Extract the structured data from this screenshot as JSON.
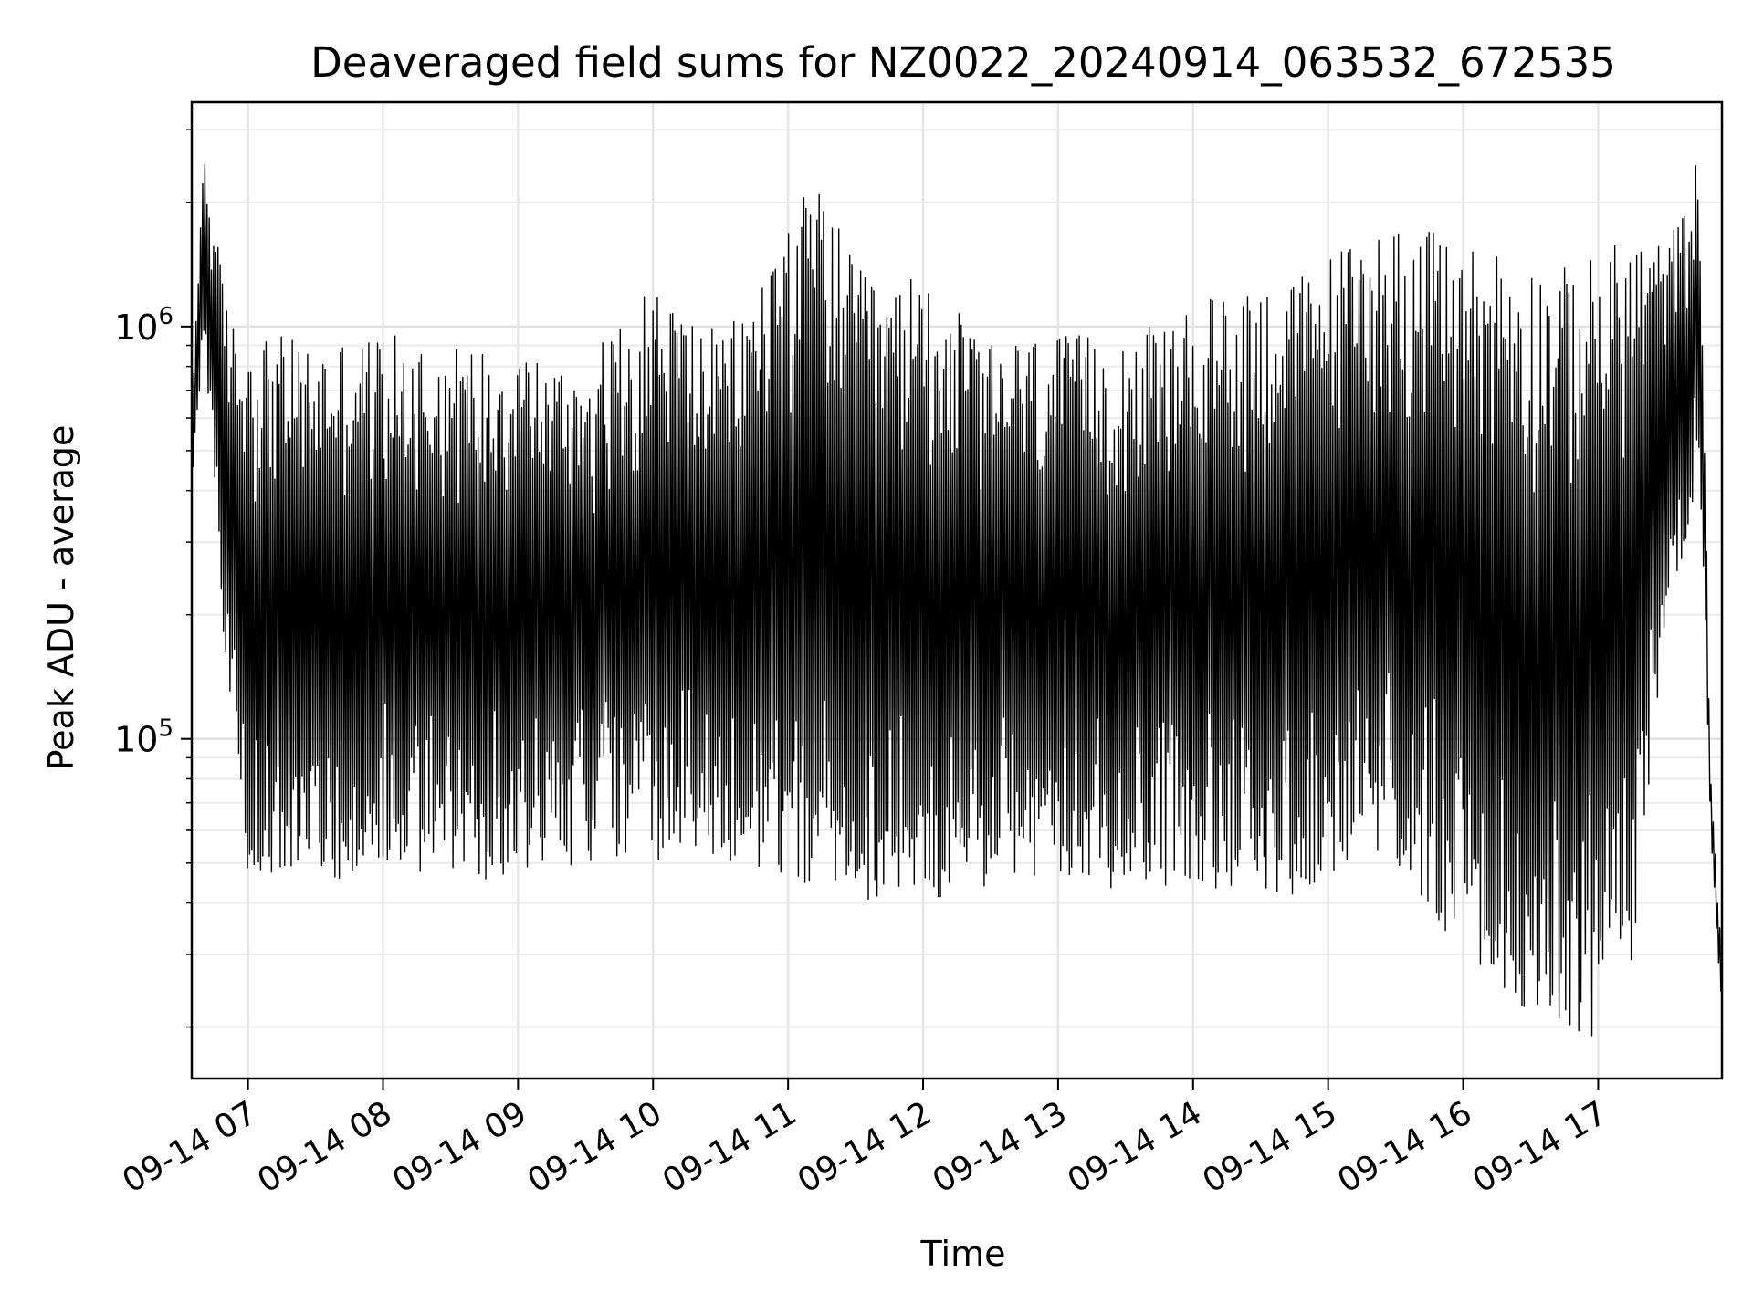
{
  "chart_data": {
    "type": "line",
    "title": "Deaveraged field sums for NZ0022_20240914_063532_672535",
    "xlabel": "Time",
    "ylabel": "Peak ADU - average",
    "yscale": "log",
    "ylim": [
      15000,
      3500000
    ],
    "xlim": [
      "2024-09-14 06:35",
      "2024-09-14 17:55"
    ],
    "grid": true,
    "line_color": "#000000",
    "x_ticks": [
      {
        "t": "2024-09-14 07:00",
        "label": "09-14 07"
      },
      {
        "t": "2024-09-14 08:00",
        "label": "09-14 08"
      },
      {
        "t": "2024-09-14 09:00",
        "label": "09-14 09"
      },
      {
        "t": "2024-09-14 10:00",
        "label": "09-14 10"
      },
      {
        "t": "2024-09-14 11:00",
        "label": "09-14 11"
      },
      {
        "t": "2024-09-14 12:00",
        "label": "09-14 12"
      },
      {
        "t": "2024-09-14 13:00",
        "label": "09-14 13"
      },
      {
        "t": "2024-09-14 14:00",
        "label": "09-14 14"
      },
      {
        "t": "2024-09-14 15:00",
        "label": "09-14 15"
      },
      {
        "t": "2024-09-14 16:00",
        "label": "09-14 16"
      },
      {
        "t": "2024-09-14 17:00",
        "label": "09-14 17"
      }
    ],
    "y_ticks": [
      {
        "value": 100000,
        "base": "10",
        "exp": "5"
      },
      {
        "value": 1000000,
        "base": "10",
        "exp": "6"
      }
    ],
    "series": [
      {
        "style": "envelope",
        "x": [
          "2024-09-14 06:35",
          "2024-09-14 06:40",
          "2024-09-14 06:45",
          "2024-09-14 06:50",
          "2024-09-14 06:55",
          "2024-09-14 07:00",
          "2024-09-14 07:15",
          "2024-09-14 07:30",
          "2024-09-14 07:45",
          "2024-09-14 08:00",
          "2024-09-14 08:15",
          "2024-09-14 08:30",
          "2024-09-14 08:45",
          "2024-09-14 09:00",
          "2024-09-14 09:15",
          "2024-09-14 09:30",
          "2024-09-14 09:45",
          "2024-09-14 10:00",
          "2024-09-14 10:15",
          "2024-09-14 10:30",
          "2024-09-14 10:45",
          "2024-09-14 11:00",
          "2024-09-14 11:15",
          "2024-09-14 11:30",
          "2024-09-14 11:45",
          "2024-09-14 12:00",
          "2024-09-14 12:15",
          "2024-09-14 12:30",
          "2024-09-14 12:45",
          "2024-09-14 13:00",
          "2024-09-14 13:15",
          "2024-09-14 13:30",
          "2024-09-14 13:45",
          "2024-09-14 14:00",
          "2024-09-14 14:15",
          "2024-09-14 14:30",
          "2024-09-14 14:45",
          "2024-09-14 15:00",
          "2024-09-14 15:15",
          "2024-09-14 15:30",
          "2024-09-14 15:45",
          "2024-09-14 16:00",
          "2024-09-14 16:15",
          "2024-09-14 16:30",
          "2024-09-14 16:45",
          "2024-09-14 17:00",
          "2024-09-14 17:15",
          "2024-09-14 17:30",
          "2024-09-14 17:40",
          "2024-09-14 17:45",
          "2024-09-14 17:50",
          "2024-09-14 17:55"
        ],
        "high": [
          600000,
          2800000,
          1800000,
          1200000,
          950000,
          1000000,
          950000,
          900000,
          950000,
          950000,
          950000,
          900000,
          900000,
          950000,
          800000,
          850000,
          1000000,
          1300000,
          1100000,
          950000,
          1200000,
          2000000,
          2200000,
          1400000,
          1200000,
          1400000,
          1100000,
          900000,
          950000,
          950000,
          950000,
          1000000,
          1000000,
          1100000,
          1250000,
          1300000,
          1300000,
          1500000,
          1700000,
          1800000,
          1700000,
          1600000,
          1600000,
          1450000,
          1400000,
          1500000,
          1700000,
          1600000,
          2000000,
          2800000,
          80000,
          30000
        ],
        "low": [
          400000,
          900000,
          400000,
          150000,
          80000,
          45000,
          48000,
          47000,
          45000,
          48000,
          47000,
          45000,
          45000,
          48000,
          50000,
          48000,
          52000,
          48000,
          50000,
          50000,
          48000,
          45000,
          42000,
          40000,
          42000,
          42000,
          40000,
          44000,
          45000,
          44000,
          42000,
          44000,
          44000,
          45000,
          42000,
          40000,
          42000,
          45000,
          50000,
          48000,
          38000,
          30000,
          24000,
          22000,
          20000,
          18000,
          28000,
          200000,
          300000,
          500000,
          60000,
          20000
        ]
      }
    ]
  }
}
